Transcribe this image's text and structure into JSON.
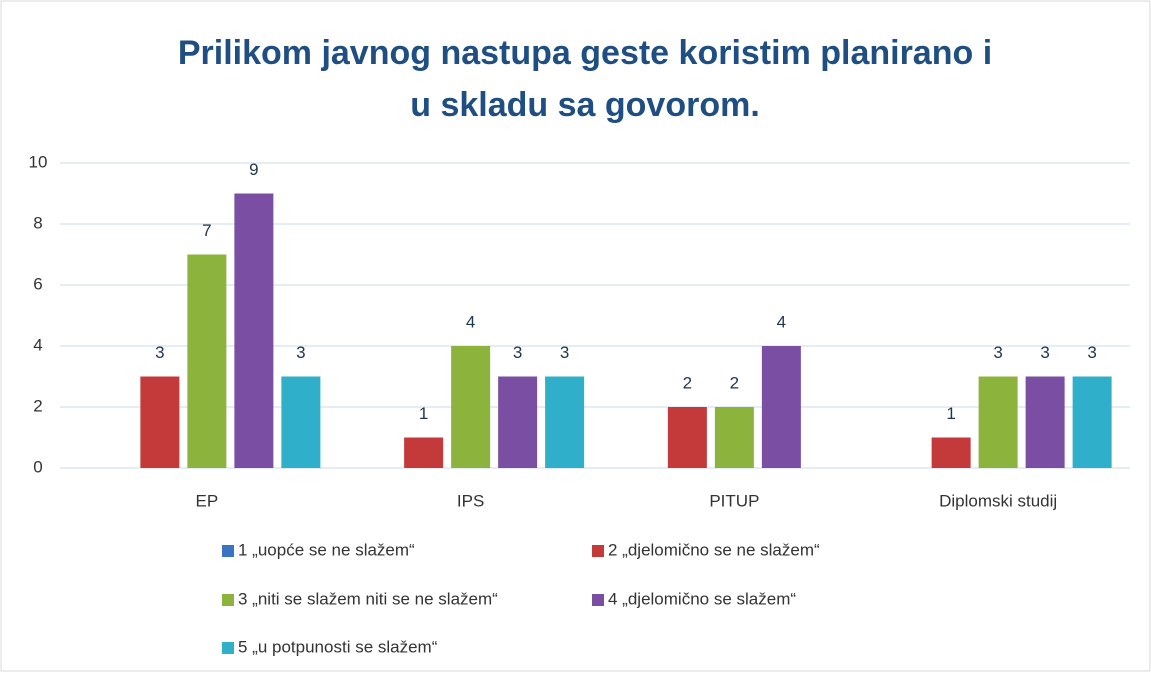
{
  "chart_data": {
    "type": "bar",
    "title": [
      "Prilikom javnog nastupa geste koristim planirano i",
      "u skladu sa govorom."
    ],
    "categories": [
      "EP",
      "IPS",
      "PITUP",
      "Diplomski studij"
    ],
    "series": [
      {
        "name": "1 „uopće se ne slažem“",
        "color": "#3a72c4",
        "values": [
          null,
          null,
          null,
          null
        ]
      },
      {
        "name": "2 „djelomično se ne slažem“",
        "color": "#c43a3a",
        "values": [
          3,
          1,
          2,
          1
        ]
      },
      {
        "name": "3 „niti se slažem niti se ne slažem“",
        "color": "#8cb43c",
        "values": [
          7,
          4,
          2,
          3
        ]
      },
      {
        "name": "4 „djelomično se slažem“",
        "color": "#7a4fa3",
        "values": [
          9,
          3,
          4,
          3
        ]
      },
      {
        "name": "5 „u potpunosti se slažem“",
        "color": "#2fafca",
        "values": [
          3,
          3,
          null,
          3
        ]
      }
    ],
    "ylim": [
      0,
      10
    ],
    "yticks": [
      0,
      2,
      4,
      6,
      8,
      10
    ],
    "grid": true
  }
}
